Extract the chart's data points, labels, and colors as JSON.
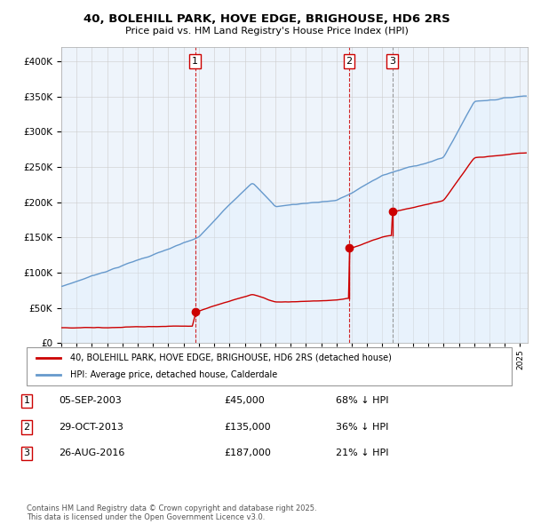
{
  "title": "40, BOLEHILL PARK, HOVE EDGE, BRIGHOUSE, HD6 2RS",
  "subtitle": "Price paid vs. HM Land Registry's House Price Index (HPI)",
  "legend_property": "40, BOLEHILL PARK, HOVE EDGE, BRIGHOUSE, HD6 2RS (detached house)",
  "legend_hpi": "HPI: Average price, detached house, Calderdale",
  "footer": "Contains HM Land Registry data © Crown copyright and database right 2025.\nThis data is licensed under the Open Government Licence v3.0.",
  "sales": [
    {
      "num": 1,
      "date": "05-SEP-2003",
      "price": 45000,
      "pct": "68% ↓ HPI",
      "year": 2003.75,
      "vline_color": "#cc0000",
      "vline_style": "--"
    },
    {
      "num": 2,
      "date": "29-OCT-2013",
      "price": 135000,
      "pct": "36% ↓ HPI",
      "year": 2013.83,
      "vline_color": "#cc0000",
      "vline_style": "--"
    },
    {
      "num": 3,
      "date": "26-AUG-2016",
      "price": 187000,
      "pct": "21% ↓ HPI",
      "year": 2016.65,
      "vline_color": "#888888",
      "vline_style": "--"
    }
  ],
  "ylim": [
    0,
    420000
  ],
  "yticks": [
    0,
    50000,
    100000,
    150000,
    200000,
    250000,
    300000,
    350000,
    400000
  ],
  "xlim_start": 1995.0,
  "xlim_end": 2025.5,
  "property_color": "#cc0000",
  "hpi_color": "#6699cc",
  "hpi_fill_color": "#ddeeff",
  "bg_color": "#ffffff",
  "grid_color": "#cccccc",
  "chart_bg": "#eef4fb"
}
